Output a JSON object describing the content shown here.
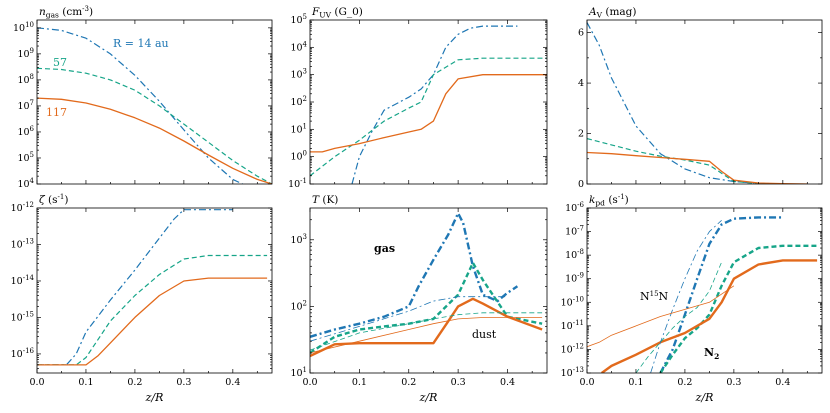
{
  "colors": {
    "R14": "#1f77b4",
    "R57": "#17a589",
    "R117": "#e26a1c"
  },
  "chart_data": [
    {
      "type": "line",
      "title": "n_gas (cm^-3)",
      "xlabel": "",
      "yscale": "log",
      "xlim": [
        0,
        0.48
      ],
      "ylim": [
        10000,
        20000000000
      ],
      "xticks": [
        0.0,
        0.1,
        0.2,
        0.3,
        0.4
      ],
      "xtick_labels": [
        "",
        "",
        "",
        "",
        ""
      ],
      "yticks": [
        10000,
        100000,
        1000000,
        10000000,
        100000000,
        1000000000,
        10000000000
      ],
      "ytick_labels": [
        "10^4",
        "10^5",
        "10^6",
        "10^7",
        "10^8",
        "10^9",
        "10^10"
      ],
      "annotations": [
        {
          "text": "R = 14 au",
          "color": "R14"
        },
        {
          "text": "57",
          "color": "R57"
        },
        {
          "text": "117",
          "color": "R117"
        }
      ],
      "series": [
        {
          "name": "R = 14 au",
          "color": "R14",
          "style": "dashdot",
          "width": 1.2,
          "x": [
            0.0,
            0.05,
            0.1,
            0.15,
            0.2,
            0.25,
            0.3,
            0.35,
            0.4,
            0.42
          ],
          "y": [
            10000000000,
            8000000000,
            4000000000,
            1000000000,
            150000000,
            15000000,
            1200000,
            100000,
            15000,
            10000
          ]
        },
        {
          "name": "57",
          "color": "R57",
          "style": "dashed",
          "width": 1.2,
          "x": [
            0.0,
            0.05,
            0.1,
            0.15,
            0.2,
            0.25,
            0.3,
            0.35,
            0.4,
            0.45,
            0.48
          ],
          "y": [
            280000000,
            250000000,
            180000000,
            100000000,
            40000000,
            10000000,
            2000000,
            400000,
            80000,
            20000,
            10000
          ]
        },
        {
          "name": "117",
          "color": "R117",
          "style": "solid",
          "width": 1.3,
          "x": [
            0.0,
            0.05,
            0.1,
            0.15,
            0.2,
            0.25,
            0.3,
            0.35,
            0.4,
            0.45,
            0.48
          ],
          "y": [
            20000000,
            18000000,
            13000000,
            7500000,
            3500000,
            1400000,
            450000,
            130000,
            40000,
            15000,
            10000
          ]
        }
      ]
    },
    {
      "type": "line",
      "title": "F_UV (G_0)",
      "xlabel": "",
      "yscale": "log",
      "xlim": [
        0,
        0.48
      ],
      "ylim": [
        0.1,
        100000
      ],
      "xticks": [
        0.0,
        0.1,
        0.2,
        0.3,
        0.4
      ],
      "xtick_labels": [
        "",
        "",
        "",
        "",
        ""
      ],
      "yticks": [
        0.1,
        1,
        10,
        100,
        1000,
        10000,
        100000
      ],
      "ytick_labels": [
        "10^-1",
        "10^0",
        "10^1",
        "10^2",
        "10^3",
        "10^4",
        "10^5"
      ],
      "annotations": [],
      "series": [
        {
          "name": "R = 14 au",
          "color": "R14",
          "style": "dashdot",
          "width": 1.2,
          "x": [
            0.085,
            0.1,
            0.125,
            0.15,
            0.2,
            0.225,
            0.25,
            0.275,
            0.3,
            0.325,
            0.35,
            0.4,
            0.42
          ],
          "y": [
            0.1,
            1,
            8,
            50,
            150,
            300,
            1000,
            10000,
            30000,
            50000,
            60000,
            60000,
            60000
          ]
        },
        {
          "name": "57",
          "color": "R57",
          "style": "dashed",
          "width": 1.2,
          "x": [
            0.0,
            0.05,
            0.1,
            0.15,
            0.2,
            0.225,
            0.25,
            0.3,
            0.35,
            0.4,
            0.48
          ],
          "y": [
            0.2,
            1,
            4,
            20,
            60,
            100,
            1000,
            3500,
            4000,
            4000,
            4000
          ]
        },
        {
          "name": "117",
          "color": "R117",
          "style": "solid",
          "width": 1.3,
          "x": [
            0.0,
            0.025,
            0.05,
            0.1,
            0.15,
            0.2,
            0.225,
            0.25,
            0.275,
            0.3,
            0.35,
            0.4,
            0.48
          ],
          "y": [
            1.5,
            1.5,
            2,
            3,
            5,
            8,
            10,
            20,
            200,
            700,
            1000,
            1000,
            1000
          ]
        }
      ]
    },
    {
      "type": "line",
      "title": "A_V (mag)",
      "xlabel": "",
      "yscale": "linear",
      "xlim": [
        0,
        0.48
      ],
      "ylim": [
        0,
        6.5
      ],
      "xticks": [
        0.0,
        0.1,
        0.2,
        0.3,
        0.4
      ],
      "xtick_labels": [
        "",
        "",
        "",
        "",
        ""
      ],
      "yticks": [
        0,
        2,
        4,
        6
      ],
      "ytick_labels": [
        "0",
        "2",
        "4",
        "6"
      ],
      "annotations": [],
      "series": [
        {
          "name": "R = 14 au",
          "color": "R14",
          "style": "dashdot",
          "width": 1.2,
          "x": [
            0.0,
            0.025,
            0.05,
            0.1,
            0.15,
            0.2,
            0.25,
            0.3,
            0.35,
            0.4
          ],
          "y": [
            6.4,
            5.5,
            4.2,
            2.3,
            1.2,
            0.6,
            0.25,
            0.1,
            0.03,
            0.0
          ]
        },
        {
          "name": "57",
          "color": "R57",
          "style": "dashed",
          "width": 1.2,
          "x": [
            0.0,
            0.05,
            0.1,
            0.15,
            0.2,
            0.25,
            0.3,
            0.35,
            0.4
          ],
          "y": [
            1.8,
            1.55,
            1.3,
            1.1,
            0.95,
            0.75,
            0.1,
            0.02,
            0.0
          ]
        },
        {
          "name": "117",
          "color": "R117",
          "style": "solid",
          "width": 1.3,
          "x": [
            0.0,
            0.05,
            0.1,
            0.15,
            0.2,
            0.25,
            0.275,
            0.3,
            0.35,
            0.4,
            0.45
          ],
          "y": [
            1.25,
            1.2,
            1.12,
            1.05,
            0.98,
            0.9,
            0.5,
            0.15,
            0.04,
            0.01,
            0.0
          ]
        }
      ]
    },
    {
      "type": "line",
      "title": "ζ (s^-1)",
      "xlabel": "z/R",
      "yscale": "log",
      "xlim": [
        0,
        0.48
      ],
      "ylim": [
        3e-17,
        1e-12
      ],
      "xticks": [
        0.0,
        0.1,
        0.2,
        0.3,
        0.4
      ],
      "xtick_labels": [
        "0.0",
        "0.1",
        "0.2",
        "0.3",
        "0.4"
      ],
      "yticks": [
        1e-16,
        1e-15,
        1e-14,
        1e-13,
        1e-12
      ],
      "ytick_labels": [
        "10^-16",
        "10^-15",
        "10^-14",
        "10^-13",
        "10^-12"
      ],
      "annotations": [],
      "series": [
        {
          "name": "R = 14 au",
          "color": "R14",
          "style": "dashdot",
          "width": 1.2,
          "x": [
            0.0,
            0.06,
            0.08,
            0.1,
            0.15,
            0.2,
            0.25,
            0.28,
            0.3,
            0.35,
            0.4
          ],
          "y": [
            5e-17,
            5e-17,
            1e-16,
            4e-16,
            3e-15,
            2e-14,
            1.5e-13,
            5e-13,
            9e-13,
            9e-13,
            9e-13
          ]
        },
        {
          "name": "57",
          "color": "R57",
          "style": "dashed",
          "width": 1.2,
          "x": [
            0.0,
            0.08,
            0.1,
            0.15,
            0.2,
            0.25,
            0.3,
            0.35,
            0.4,
            0.47
          ],
          "y": [
            5e-17,
            5e-17,
            8e-17,
            8e-16,
            4e-15,
            1.5e-14,
            4e-14,
            5e-14,
            5e-14,
            5e-14
          ]
        },
        {
          "name": "117",
          "color": "R117",
          "style": "solid",
          "width": 1.3,
          "x": [
            0.0,
            0.1,
            0.125,
            0.15,
            0.2,
            0.25,
            0.3,
            0.35,
            0.4,
            0.47
          ],
          "y": [
            5e-17,
            5e-17,
            9e-17,
            2e-16,
            1e-15,
            4e-15,
            1e-14,
            1.2e-14,
            1.2e-14,
            1.2e-14
          ]
        }
      ]
    },
    {
      "type": "line",
      "title": "T (K)",
      "xlabel": "z/R",
      "yscale": "log",
      "xlim": [
        0,
        0.48
      ],
      "ylim": [
        10,
        3000
      ],
      "xticks": [
        0.0,
        0.1,
        0.2,
        0.3,
        0.4
      ],
      "xtick_labels": [
        "0.0",
        "0.1",
        "0.2",
        "0.3",
        "0.4"
      ],
      "yticks": [
        10,
        100,
        1000
      ],
      "ytick_labels": [
        "10^1",
        "10^2",
        "10^3"
      ],
      "annotations": [
        {
          "text": "gas",
          "color": "#000000",
          "bold": true
        },
        {
          "text": "dust",
          "color": "#000000"
        }
      ],
      "series": [
        {
          "name": "R = 14 au gas",
          "color": "R14",
          "style": "dashdot",
          "width": 2.4,
          "x": [
            0.0,
            0.05,
            0.1,
            0.15,
            0.2,
            0.22,
            0.25,
            0.28,
            0.3,
            0.31,
            0.33,
            0.35,
            0.38,
            0.4,
            0.42
          ],
          "y": [
            35,
            45,
            55,
            70,
            100,
            200,
            500,
            1200,
            2500,
            1800,
            400,
            150,
            120,
            160,
            200
          ]
        },
        {
          "name": "57 gas",
          "color": "R57",
          "style": "dashed",
          "width": 2.4,
          "x": [
            0.0,
            0.05,
            0.1,
            0.15,
            0.2,
            0.25,
            0.3,
            0.33,
            0.35,
            0.4,
            0.47
          ],
          "y": [
            20,
            35,
            45,
            50,
            55,
            65,
            150,
            450,
            250,
            70,
            55
          ]
        },
        {
          "name": "117 gas",
          "color": "R117",
          "style": "solid",
          "width": 2.4,
          "x": [
            0.0,
            0.05,
            0.1,
            0.15,
            0.2,
            0.25,
            0.28,
            0.3,
            0.33,
            0.35,
            0.4,
            0.47
          ],
          "y": [
            18,
            27,
            28,
            28,
            28,
            28,
            60,
            100,
            130,
            110,
            70,
            45
          ]
        },
        {
          "name": "R = 14 au dust",
          "color": "R14",
          "style": "dashdot",
          "width": 0.8,
          "x": [
            0.0,
            0.1,
            0.2,
            0.25,
            0.3,
            0.35,
            0.4
          ],
          "y": [
            30,
            50,
            85,
            120,
            140,
            140,
            140
          ]
        },
        {
          "name": "57 dust",
          "color": "R57",
          "style": "dashed",
          "width": 0.8,
          "x": [
            0.0,
            0.1,
            0.2,
            0.25,
            0.3,
            0.35,
            0.47
          ],
          "y": [
            22,
            40,
            55,
            65,
            75,
            80,
            80
          ]
        },
        {
          "name": "117 dust",
          "color": "R117",
          "style": "solid",
          "width": 0.8,
          "x": [
            0.0,
            0.1,
            0.2,
            0.25,
            0.3,
            0.35,
            0.47
          ],
          "y": [
            20,
            30,
            45,
            55,
            65,
            68,
            68
          ]
        }
      ]
    },
    {
      "type": "line",
      "title": "k_pd (s^-1)",
      "xlabel": "z/R",
      "yscale": "log",
      "xlim": [
        0,
        0.48
      ],
      "ylim": [
        1e-13,
        1e-06
      ],
      "xticks": [
        0.0,
        0.1,
        0.2,
        0.3,
        0.4
      ],
      "xtick_labels": [
        "0.0",
        "0.1",
        "0.2",
        "0.3",
        "0.4"
      ],
      "yticks": [
        1e-13,
        1e-12,
        1e-11,
        1e-10,
        1e-09,
        1e-08,
        1e-07,
        1e-06
      ],
      "ytick_labels": [
        "10^-13",
        "10^-12",
        "10^-11",
        "10^-10",
        "10^-9",
        "10^-8",
        "10^-7",
        "10^-6"
      ],
      "annotations": [
        {
          "text": "N15N",
          "color": "#000000"
        },
        {
          "text": "N2",
          "color": "#000000",
          "bold": true
        }
      ],
      "series": [
        {
          "name": "R = 14 au N2",
          "color": "R14",
          "style": "dashdot",
          "width": 2.4,
          "x": [
            0.15,
            0.175,
            0.2,
            0.225,
            0.25,
            0.275,
            0.3,
            0.35,
            0.4
          ],
          "y": [
            1e-13,
            1e-12,
            3e-11,
            1e-09,
            3e-08,
            2e-07,
            3.5e-07,
            4e-07,
            4e-07
          ]
        },
        {
          "name": "57 N2",
          "color": "R57",
          "style": "dashed",
          "width": 2.4,
          "x": [
            0.15,
            0.175,
            0.2,
            0.225,
            0.25,
            0.275,
            0.3,
            0.35,
            0.4,
            0.47
          ],
          "y": [
            1e-13,
            6e-13,
            3e-12,
            8e-12,
            3e-11,
            5e-10,
            5e-09,
            2e-08,
            2.5e-08,
            2.5e-08
          ]
        },
        {
          "name": "117 N2",
          "color": "R117",
          "style": "solid",
          "width": 2.4,
          "x": [
            0.03,
            0.05,
            0.1,
            0.15,
            0.2,
            0.25,
            0.275,
            0.3,
            0.35,
            0.4,
            0.47
          ],
          "y": [
            1e-13,
            2e-13,
            6e-13,
            2e-12,
            5e-12,
            2e-11,
            1e-10,
            1e-09,
            4e-09,
            6e-09,
            6e-09
          ]
        },
        {
          "name": "R = 14 au N15N",
          "color": "R14",
          "style": "dashdot",
          "width": 0.8,
          "x": [
            0.13,
            0.15,
            0.175,
            0.2,
            0.225,
            0.25,
            0.275
          ],
          "y": [
            1e-13,
            2e-12,
            5e-11,
            1e-09,
            1.5e-08,
            1e-07,
            3e-07
          ]
        },
        {
          "name": "57 N15N",
          "color": "R57",
          "style": "dashed",
          "width": 0.8,
          "x": [
            0.1,
            0.125,
            0.15,
            0.175,
            0.2,
            0.225,
            0.25,
            0.275
          ],
          "y": [
            1e-13,
            5e-13,
            2e-12,
            8e-12,
            2.5e-11,
            6e-11,
            3e-10,
            5e-09
          ]
        },
        {
          "name": "117 N15N",
          "color": "R117",
          "style": "solid",
          "width": 0.8,
          "x": [
            0.0,
            0.025,
            0.05,
            0.1,
            0.15,
            0.2,
            0.25,
            0.3
          ],
          "y": [
            1.3e-12,
            2e-12,
            4e-12,
            1e-11,
            2.5e-11,
            5e-11,
            1e-10,
            5e-10
          ]
        }
      ]
    }
  ]
}
